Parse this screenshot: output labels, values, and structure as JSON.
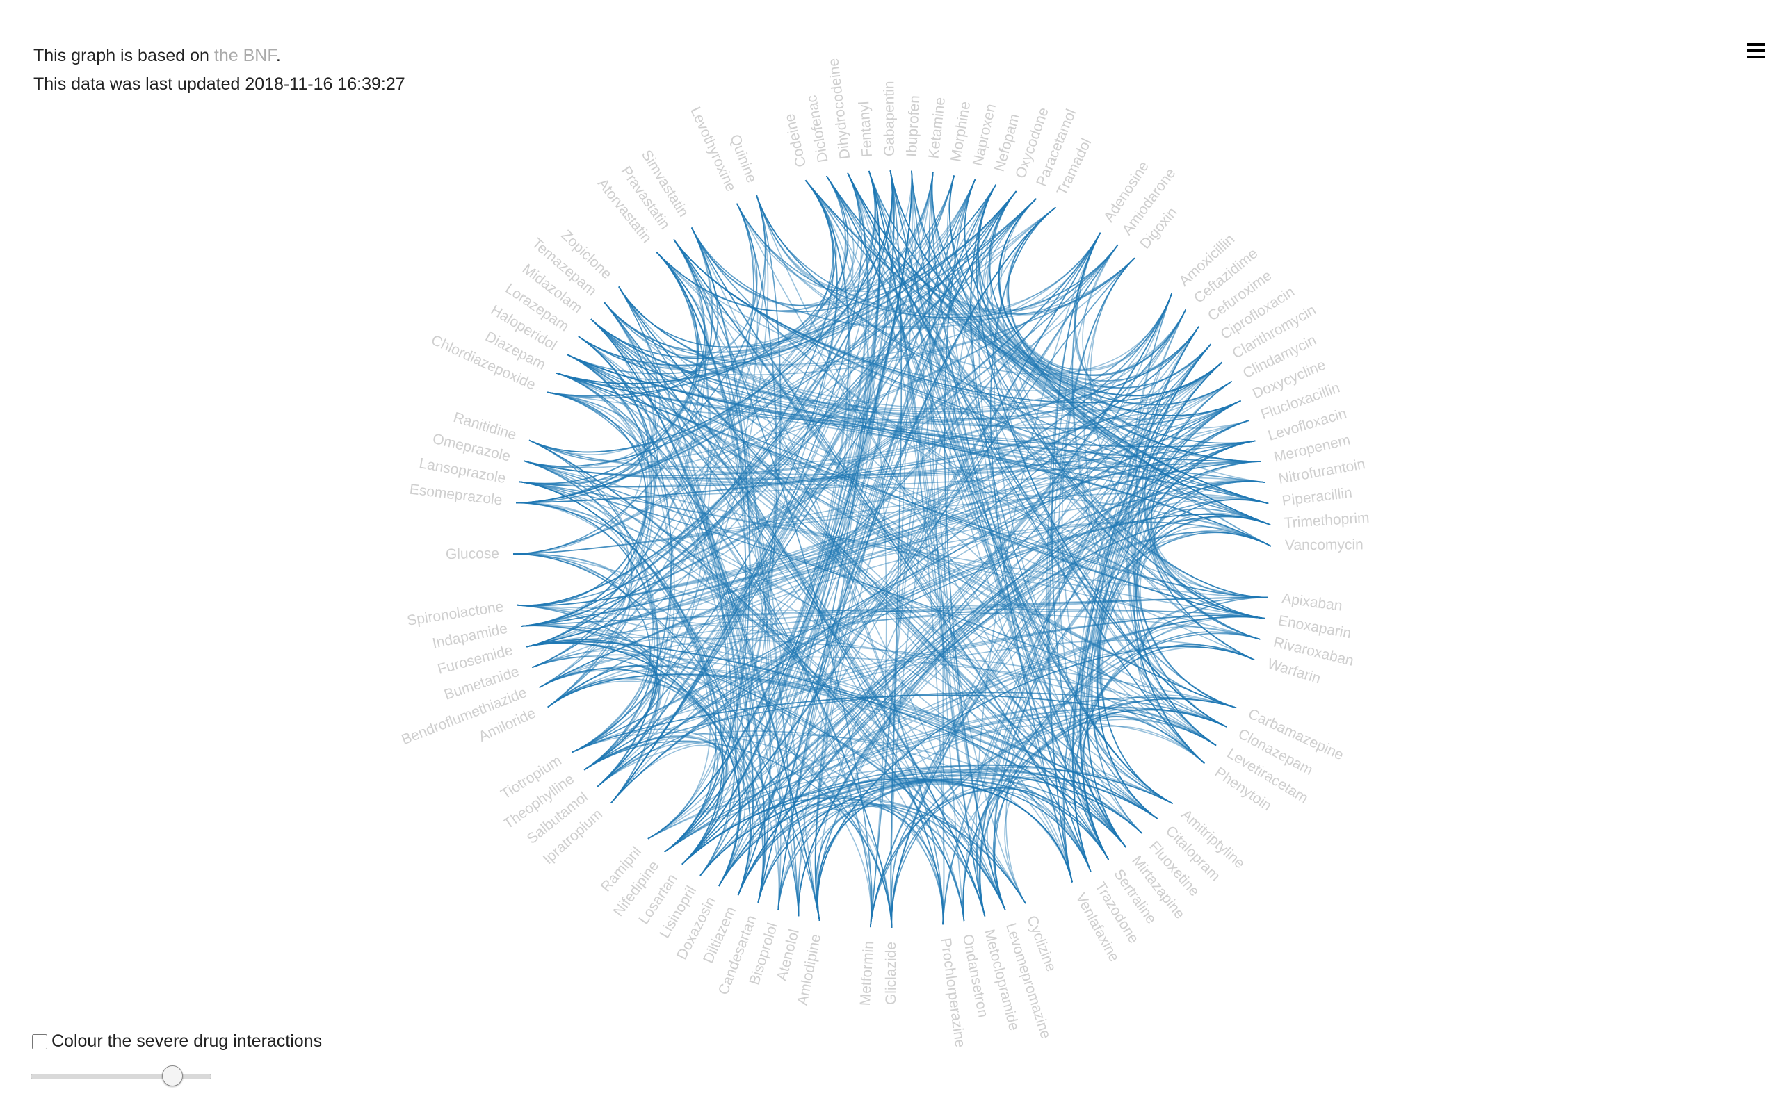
{
  "info": {
    "line1_prefix": "This graph is based on ",
    "line1_link": "the BNF",
    "line1_suffix": ".",
    "line2": "This data was last updated 2018-11-16 16:39:27"
  },
  "menu": {
    "icon": "hamburger-icon"
  },
  "controls": {
    "checkbox_label": "Colour the severe drug interactions",
    "checkbox_checked": false,
    "slider_value": 0.82
  },
  "colors": {
    "edge": "#1f77b4",
    "label": "#cfcfcf",
    "link": "#aaaaaa"
  },
  "drugs": [
    "Codeine",
    "Diclofenac",
    "Dihydrocodeine",
    "Fentanyl",
    "Gabapentin",
    "Ibuprofen",
    "Ketamine",
    "Morphine",
    "Naproxen",
    "Nefopam",
    "Oxycodone",
    "Paracetamol",
    "Tramadol",
    "Adenosine",
    "Amiodarone",
    "Digoxin",
    "Amoxicillin",
    "Ceftazidime",
    "Cefuroxime",
    "Ciprofloxacin",
    "Clarithromycin",
    "Clindamycin",
    "Doxycycline",
    "Flucloxacillin",
    "Levofloxacin",
    "Meropenem",
    "Nitrofurantoin",
    "Piperacillin",
    "Trimethoprim",
    "Vancomycin",
    "Apixaban",
    "Enoxaparin",
    "Rivaroxaban",
    "Warfarin",
    "Carbamazepine",
    "Clonazepam",
    "Levetiracetam",
    "Phenytoin",
    "Amitriptyline",
    "Citalopram",
    "Fluoxetine",
    "Mirtazapine",
    "Sertraline",
    "Trazodone",
    "Venlafaxine",
    "Cyclizine",
    "Levomepromazine",
    "Metoclopramide",
    "Ondansetron",
    "Prochlorperazine",
    "Gliclazide",
    "Metformin",
    "Amlodipine",
    "Atenolol",
    "Bisoprolol",
    "Candesartan",
    "Diltiazem",
    "Doxazosin",
    "Lisinopril",
    "Losartan",
    "Nifedipine",
    "Ramipril",
    "Ipratropium",
    "Salbutamol",
    "Theophylline",
    "Tiotropium",
    "Amiloride",
    "Bendroflumethiazide",
    "Bumetanide",
    "Furosemide",
    "Indapamide",
    "Spironolactone",
    "Glucose",
    "Esomeprazole",
    "Lansoprazole",
    "Omeprazole",
    "Ranitidine",
    "Chlordiazepoxide",
    "Diazepam",
    "Haloperidol",
    "Lorazepam",
    "Midazolam",
    "Temazepam",
    "Zopiclone",
    "Atorvastatin",
    "Pravastatin",
    "Simvastatin",
    "Levothyroxine",
    "Quinine"
  ],
  "gaps_after": [
    "Tramadol",
    "Digoxin",
    "Vancomycin",
    "Warfarin",
    "Phenytoin",
    "Venlafaxine",
    "Prochlorperazine",
    "Metformin",
    "Ramipril",
    "Tiotropium",
    "Spironolactone",
    "Glucose",
    "Ranitidine",
    "Zopiclone",
    "Simvastatin",
    "Quinine"
  ]
}
